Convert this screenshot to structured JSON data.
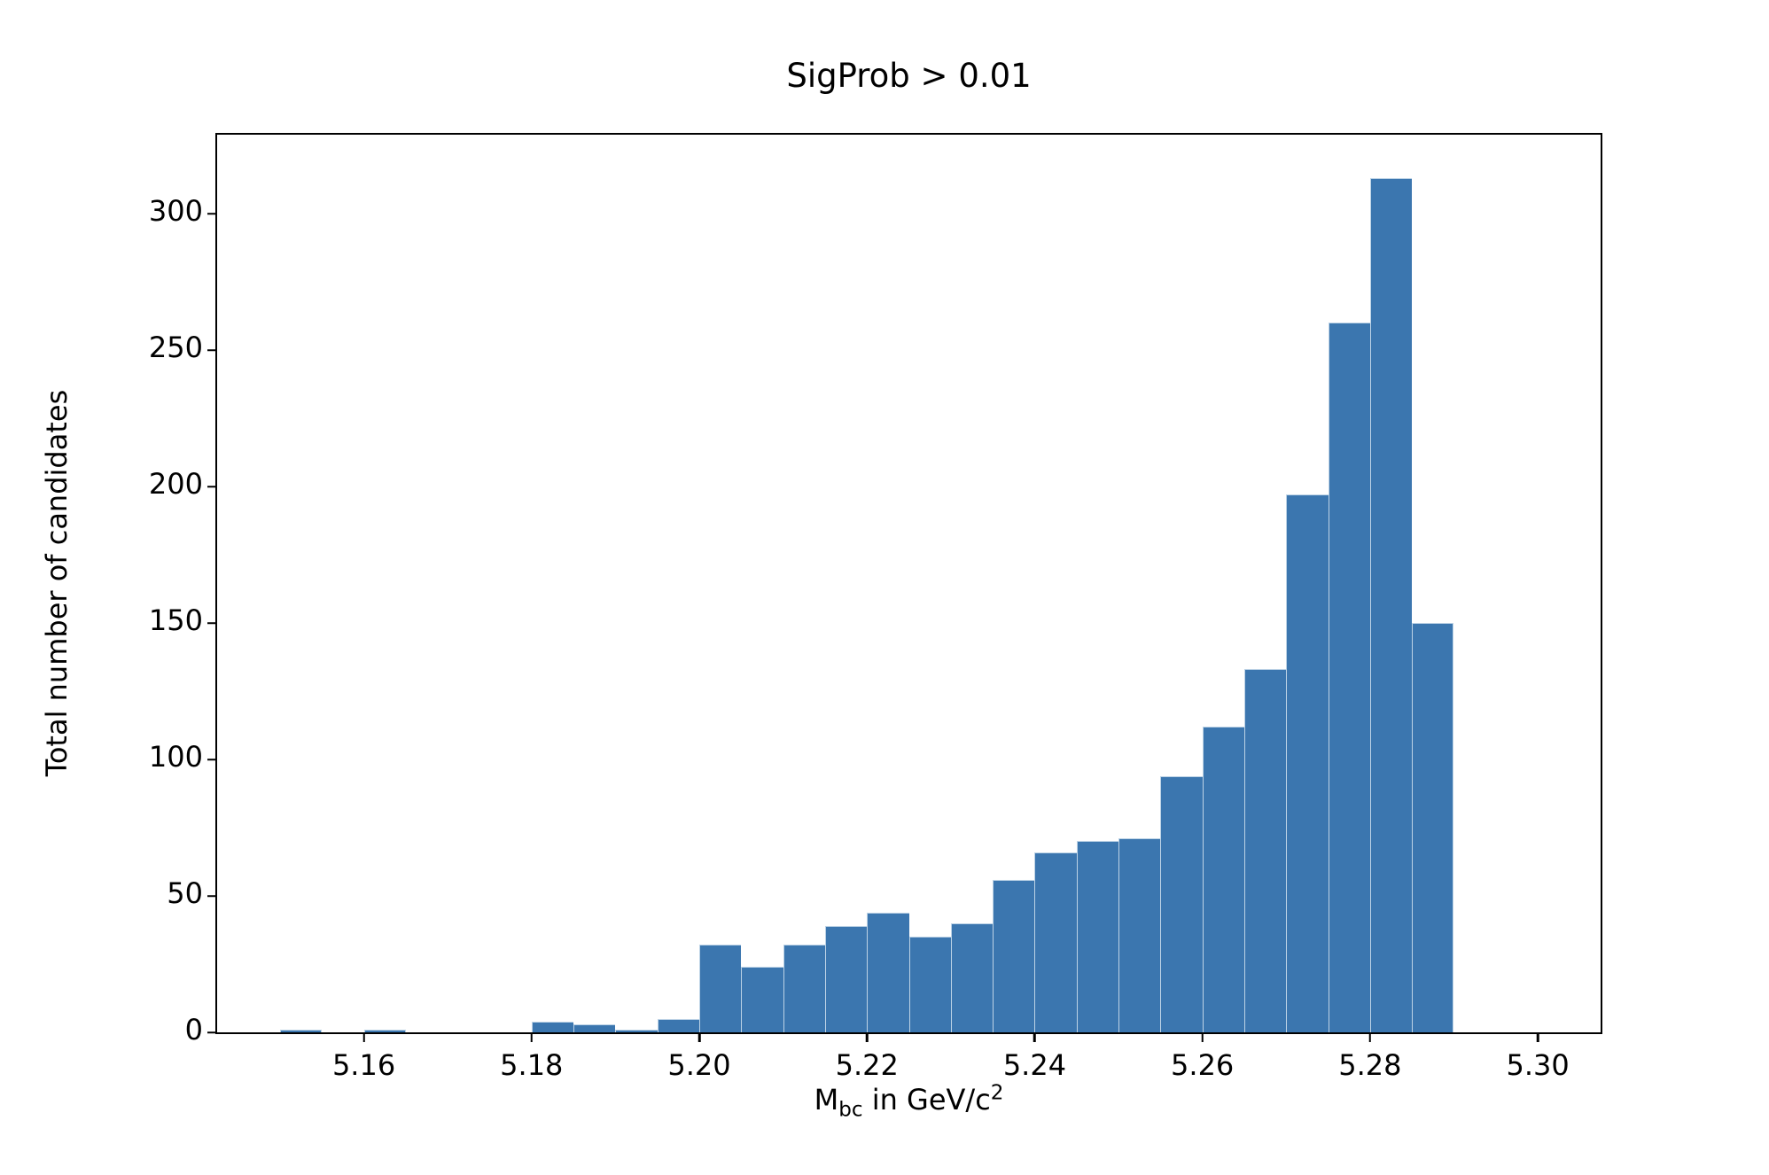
{
  "chart_data": {
    "type": "bar",
    "subtype": "histogram",
    "title": "SigProb > 0.01",
    "ylabel": "Total number of candidates",
    "xlabel_plain": "M_bc in GeV/c^2",
    "xlabel_parts": {
      "base": "M",
      "subscript": "bc",
      "middle": " in GeV/c",
      "superscript": "2"
    },
    "bins": {
      "start": 5.15,
      "bin_width": 0.005,
      "n_bins": 28
    },
    "bin_edges": [
      5.15,
      5.155,
      5.16,
      5.165,
      5.17,
      5.175,
      5.18,
      5.185,
      5.19,
      5.195,
      5.2,
      5.205,
      5.21,
      5.215,
      5.22,
      5.225,
      5.23,
      5.235,
      5.24,
      5.245,
      5.25,
      5.255,
      5.26,
      5.265,
      5.27,
      5.275,
      5.28,
      5.285,
      5.29
    ],
    "counts": [
      1,
      0,
      1,
      0,
      0,
      0,
      4,
      3,
      1,
      5,
      32,
      24,
      32,
      39,
      44,
      35,
      40,
      56,
      66,
      70,
      71,
      94,
      112,
      133,
      197,
      260,
      313,
      150
    ],
    "x_ticks": [
      {
        "value": 5.16,
        "label": "5.16"
      },
      {
        "value": 5.18,
        "label": "5.18"
      },
      {
        "value": 5.2,
        "label": "5.20"
      },
      {
        "value": 5.22,
        "label": "5.22"
      },
      {
        "value": 5.24,
        "label": "5.24"
      },
      {
        "value": 5.26,
        "label": "5.26"
      },
      {
        "value": 5.28,
        "label": "5.28"
      },
      {
        "value": 5.3,
        "label": "5.30"
      }
    ],
    "y_ticks": [
      {
        "value": 0,
        "label": "0"
      },
      {
        "value": 50,
        "label": "50"
      },
      {
        "value": 100,
        "label": "100"
      },
      {
        "value": 150,
        "label": "150"
      },
      {
        "value": 200,
        "label": "200"
      },
      {
        "value": 250,
        "label": "250"
      },
      {
        "value": 300,
        "label": "300"
      }
    ],
    "xlim": [
      5.1425,
      5.3075
    ],
    "ylim": [
      0,
      329
    ],
    "grid": false,
    "legend": null,
    "bar_color": "#3b76af",
    "bar_edge_color": "#bdd3e6",
    "axis_color": "#000000",
    "background_color": "#ffffff"
  }
}
